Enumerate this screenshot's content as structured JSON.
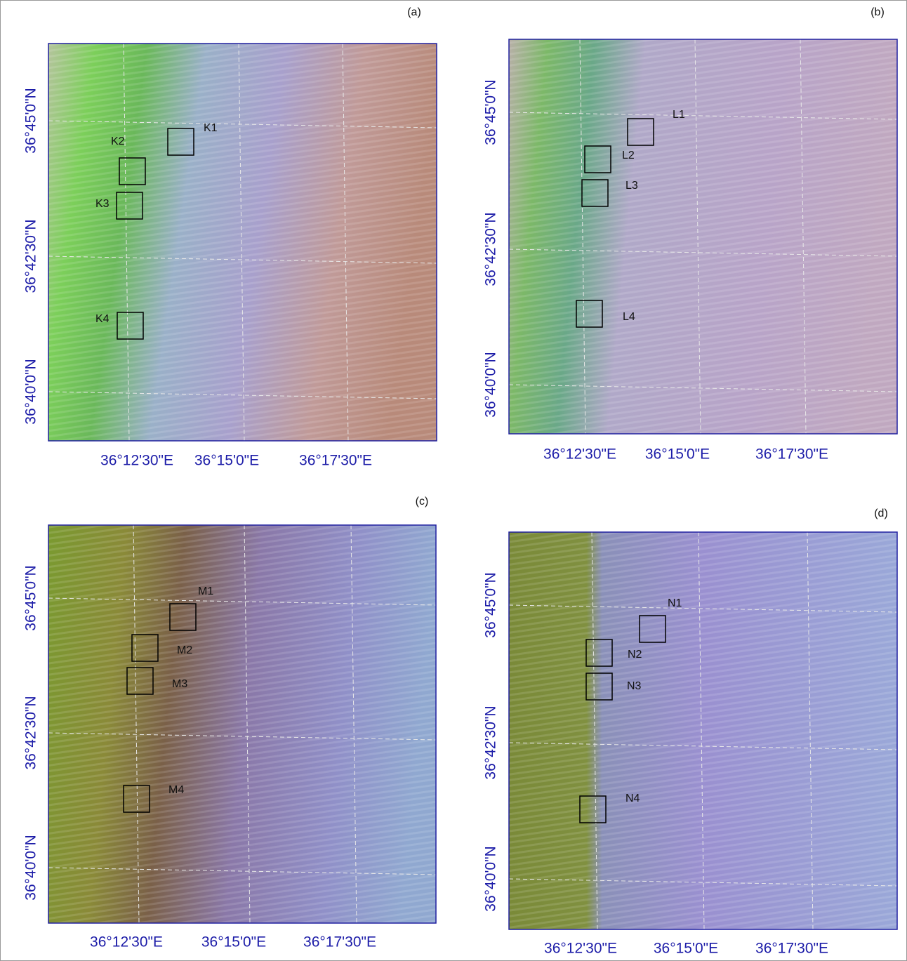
{
  "panels": [
    {
      "label": "(a)",
      "lat_labels": [
        "36°45'0\"N",
        "36°42'30\"N",
        "36°40'0\"N"
      ],
      "lon_labels": [
        "36°12'30\"E",
        "36°15'0\"E",
        "36°17'30\"E"
      ],
      "boxes": [
        "K1",
        "K2",
        "K3",
        "K4"
      ]
    },
    {
      "label": "(b)",
      "lat_labels": [
        "36°45'0\"N",
        "36°42'30\"N",
        "36°40'0\"N"
      ],
      "lon_labels": [
        "36°12'30\"E",
        "36°15'0\"E",
        "36°17'30\"E"
      ],
      "boxes": [
        "L1",
        "L2",
        "L3",
        "L4"
      ]
    },
    {
      "label": "(c)",
      "lat_labels": [
        "36°45'0\"N",
        "36°42'30\"N",
        "36°40'0\"N"
      ],
      "lon_labels": [
        "36°12'30\"E",
        "36°15'0\"E",
        "36°17'30\"E"
      ],
      "boxes": [
        "M1",
        "M2",
        "M3",
        "M4"
      ]
    },
    {
      "label": "(d)",
      "lat_labels": [
        "36°45'0\"N",
        "36°42'30\"N",
        "36°40'0\"N"
      ],
      "lon_labels": [
        "36°12'30\"E",
        "36°15'0\"E",
        "36°17'30\"E"
      ],
      "boxes": [
        "N1",
        "N2",
        "N3",
        "N4"
      ]
    }
  ]
}
